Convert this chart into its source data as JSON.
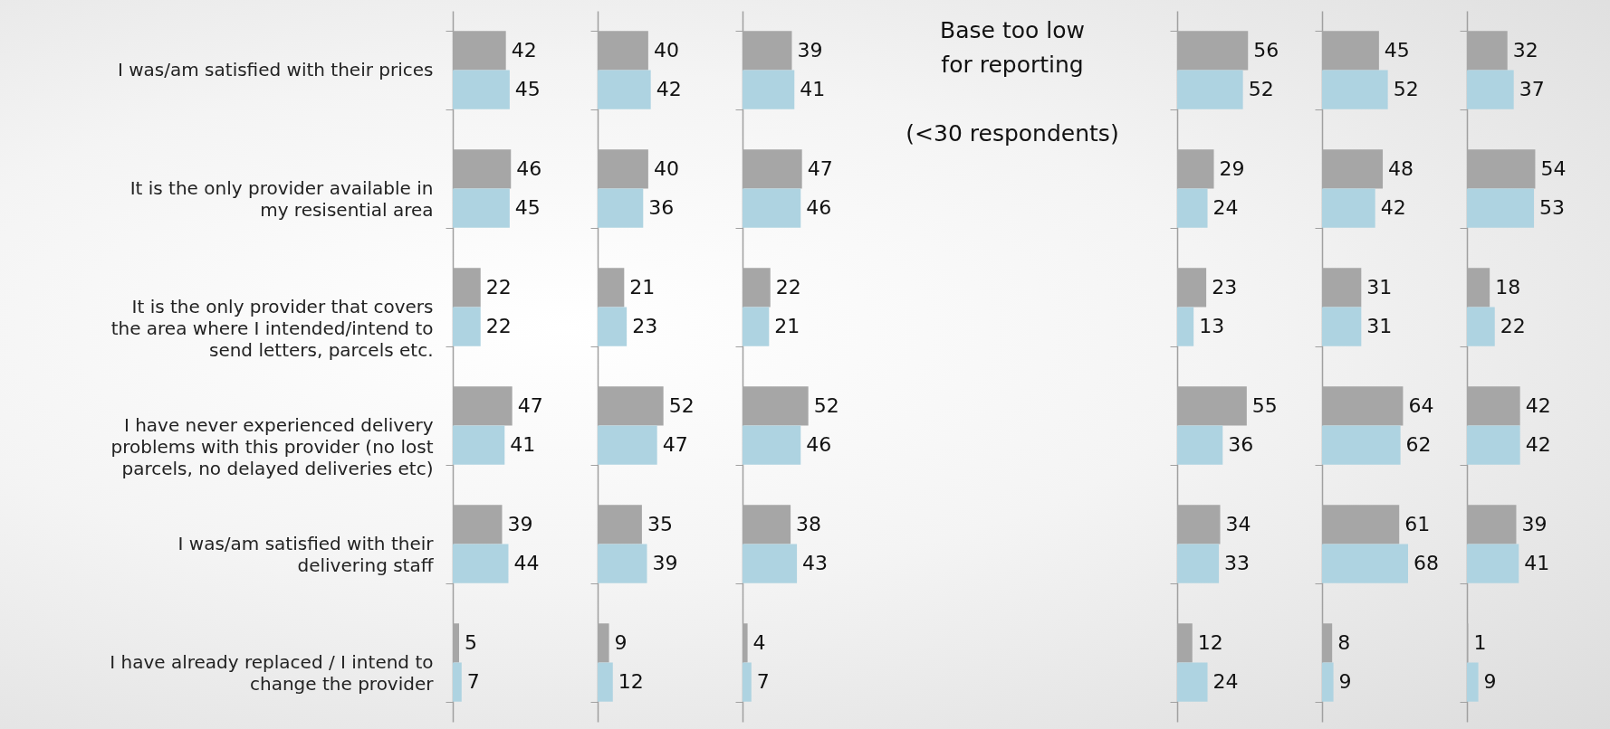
{
  "chart_data": [
    {
      "type": "bar",
      "orientation": "horizontal",
      "tick_labels": "y",
      "data_labels": true,
      "categories": [
        "I was/am satisfied with their prices",
        "It is the only provider available in my resisential area",
        "It is the only provider that covers the area where I intended/intend to send letters, parcels etc.",
        "I have never experienced delivery problems with this provider (no lost parcels, no delayed deliveries etc)",
        "I was/am satisfied with their delivering staff",
        "I have already replaced / I intend to change the provider"
      ],
      "series": [
        {
          "color": "#a6a6a6",
          "values": [
            42,
            46,
            22,
            47,
            39,
            5
          ]
        },
        {
          "color": "#aed3e1",
          "values": [
            45,
            45,
            22,
            41,
            44,
            7
          ]
        }
      ]
    },
    {
      "type": "bar",
      "orientation": "horizontal",
      "data_labels": true,
      "categories": [
        null,
        null,
        null,
        null,
        null,
        null
      ],
      "series": [
        {
          "color": "#a6a6a6",
          "values": [
            40,
            40,
            21,
            52,
            35,
            9
          ]
        },
        {
          "color": "#aed3e1",
          "values": [
            42,
            36,
            23,
            47,
            39,
            12
          ]
        }
      ]
    },
    {
      "type": "bar",
      "orientation": "horizontal",
      "data_labels": true,
      "categories": [
        null,
        null,
        null,
        null,
        null,
        null
      ],
      "series": [
        {
          "color": "#a6a6a6",
          "values": [
            39,
            47,
            22,
            52,
            38,
            4
          ]
        },
        {
          "color": "#aed3e1",
          "values": [
            41,
            46,
            21,
            46,
            43,
            7
          ]
        }
      ]
    },
    {
      "type": "other",
      "annotations": [
        "Base too low for reporting",
        "(<30 respondents)"
      ]
    },
    {
      "type": "bar",
      "orientation": "horizontal",
      "data_labels": true,
      "categories": [
        null,
        null,
        null,
        null,
        null,
        null
      ],
      "series": [
        {
          "color": "#a6a6a6",
          "values": [
            56,
            29,
            23,
            55,
            34,
            12
          ]
        },
        {
          "color": "#aed3e1",
          "values": [
            52,
            24,
            13,
            36,
            33,
            24
          ]
        }
      ]
    },
    {
      "type": "bar",
      "orientation": "horizontal",
      "data_labels": true,
      "categories": [
        null,
        null,
        null,
        null,
        null,
        null
      ],
      "series": [
        {
          "color": "#a6a6a6",
          "values": [
            45,
            48,
            31,
            64,
            61,
            8
          ]
        },
        {
          "color": "#aed3e1",
          "values": [
            52,
            42,
            31,
            62,
            68,
            9
          ]
        }
      ]
    },
    {
      "type": "bar",
      "orientation": "horizontal",
      "data_labels": true,
      "categories": [
        null,
        null,
        null,
        null,
        null,
        null
      ],
      "series": [
        {
          "color": "#a6a6a6",
          "values": [
            32,
            54,
            18,
            42,
            39,
            1
          ]
        },
        {
          "color": "#aed3e1",
          "values": [
            37,
            53,
            22,
            42,
            41,
            9
          ]
        }
      ]
    }
  ]
}
